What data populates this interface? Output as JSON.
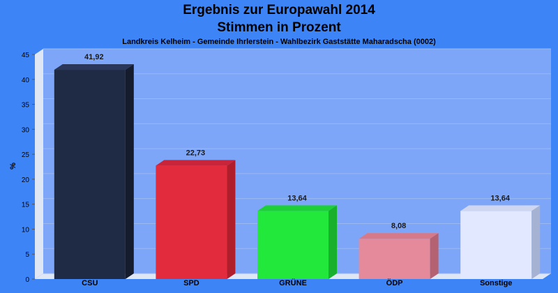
{
  "chart_data": {
    "type": "bar",
    "title": "Ergebnis zur Europawahl 2014",
    "title_line2": "Stimmen in Prozent",
    "subtitle": "Landkreis Kelheim - Gemeinde Ihrlerstein - Wahlbezirk Gaststätte Maharadscha (0002)",
    "ylabel": "%",
    "xlabel": "",
    "ylim": [
      0,
      45
    ],
    "yticks": [
      0,
      5,
      10,
      15,
      20,
      25,
      30,
      35,
      40,
      45
    ],
    "grid": true,
    "categories": [
      "CSU",
      "SPD",
      "GRÜNE",
      "ÖDP",
      "Sonstige"
    ],
    "values": [
      41.92,
      22.73,
      13.64,
      8.08,
      13.64
    ],
    "value_labels": [
      "41,92",
      "22,73",
      "13,64",
      "8,08",
      "13,64"
    ],
    "colors": [
      "#1f2a44",
      "#e22b3c",
      "#22e83c",
      "#e48a9a",
      "#e2e8ff"
    ],
    "colors_dark": [
      "#141c2e",
      "#b01e2c",
      "#18b02c",
      "#b46272",
      "#a6b2d2"
    ],
    "colors_top": [
      "#2a365a",
      "#c8243a",
      "#1ed038",
      "#d67a8a",
      "#cfd6f0"
    ],
    "background": "#3d85f6",
    "plot_background": "#7ea6f8"
  }
}
